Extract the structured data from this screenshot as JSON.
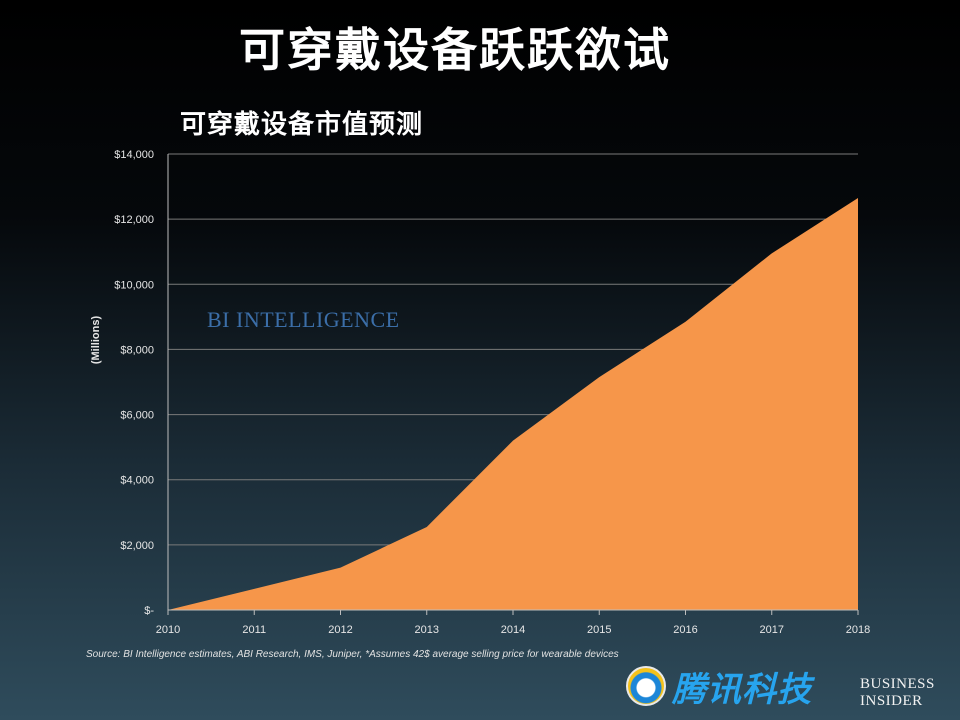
{
  "slide_title": "可穿戴设备跃跃欲试",
  "chart_title": "可穿戴设备市值预测",
  "watermark": "BI INTELLIGENCE",
  "source": "Source: BI Intelligence estimates, ABI Research, IMS, Juniper, *Assumes 42$ average selling price for wearable devices",
  "logos": {
    "tencent": "腾讯科技",
    "business_insider_line1": "BUSINESS",
    "business_insider_line2": "INSIDER"
  },
  "colors": {
    "area_fill": "#f6964a",
    "gridline": "#7a7a7a",
    "axis_text": "#e6e6e6"
  },
  "chart_data": {
    "type": "area",
    "title": "可穿戴设备市值预测",
    "xlabel": "",
    "ylabel": "(Millions)",
    "x": [
      "2010",
      "2011",
      "2012",
      "2013",
      "2014",
      "2015",
      "2016",
      "2017",
      "2018"
    ],
    "values": [
      0,
      650,
      1300,
      2550,
      5200,
      7150,
      8850,
      10950,
      12650
    ],
    "ylim": [
      0,
      14000
    ],
    "yticks": [
      0,
      2000,
      4000,
      6000,
      8000,
      10000,
      12000,
      14000
    ],
    "ytick_labels": [
      "$-",
      "$2,000",
      "$4,000",
      "$6,000",
      "$8,000",
      "$10,000",
      "$12,000",
      "$14,000"
    ],
    "grid": true
  }
}
